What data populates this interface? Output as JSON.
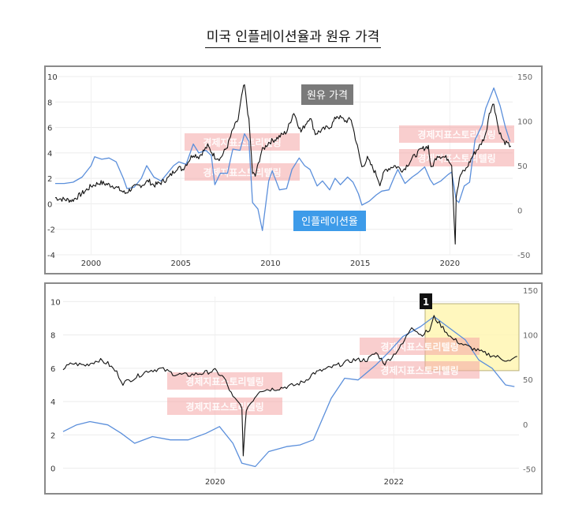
{
  "page": {
    "title": "미국 인플레이션율과 원유 가격"
  },
  "colors": {
    "inflation_line": "#5b8fdb",
    "oil_line": "#111111",
    "oil_label_bg": "#7a7a7a",
    "inflation_label_bg": "#3d9be9",
    "highlight_fill": "#fff6b3",
    "watermark": "#f4a6a6",
    "badge_bg": "#111111"
  },
  "chart_data": [
    {
      "type": "line",
      "title": "",
      "x_ticks": [
        "2000",
        "2005",
        "2010",
        "2015",
        "2020"
      ],
      "y_left_ticks": [
        "10",
        "8",
        "6",
        "4",
        "2",
        "0",
        "-2",
        "-4"
      ],
      "y_right_ticks": [
        "150",
        "100",
        "50",
        "0",
        "-50"
      ],
      "ylim_left": [
        -4,
        10
      ],
      "ylim_right": [
        -50,
        150
      ],
      "xlim": [
        1998.0,
        2023.5
      ],
      "grid": true,
      "annotations": {
        "oil": "원유 가격",
        "inflation": "인플레이션율"
      },
      "watermark": "경제지표스토리텔링",
      "series": [
        {
          "name": "인플레이션율",
          "axis": "left",
          "points": [
            [
              1998.0,
              1.6
            ],
            [
              1998.5,
              1.6
            ],
            [
              1999.0,
              1.7
            ],
            [
              1999.5,
              2.1
            ],
            [
              2000.0,
              3.0
            ],
            [
              2000.2,
              3.7
            ],
            [
              2000.6,
              3.5
            ],
            [
              2001.0,
              3.6
            ],
            [
              2001.4,
              3.3
            ],
            [
              2001.8,
              2.0
            ],
            [
              2002.0,
              1.2
            ],
            [
              2002.4,
              1.3
            ],
            [
              2002.8,
              2.0
            ],
            [
              2003.1,
              3.0
            ],
            [
              2003.5,
              2.1
            ],
            [
              2003.9,
              1.8
            ],
            [
              2004.2,
              2.3
            ],
            [
              2004.6,
              3.0
            ],
            [
              2004.9,
              3.3
            ],
            [
              2005.3,
              3.1
            ],
            [
              2005.7,
              4.7
            ],
            [
              2006.0,
              4.0
            ],
            [
              2006.4,
              4.2
            ],
            [
              2006.7,
              3.8
            ],
            [
              2006.9,
              1.5
            ],
            [
              2007.2,
              2.4
            ],
            [
              2007.6,
              2.4
            ],
            [
              2007.9,
              4.3
            ],
            [
              2008.3,
              4.2
            ],
            [
              2008.55,
              5.5
            ],
            [
              2008.8,
              4.9
            ],
            [
              2009.0,
              0.1
            ],
            [
              2009.3,
              -0.4
            ],
            [
              2009.55,
              -2.1
            ],
            [
              2009.9,
              1.8
            ],
            [
              2010.1,
              2.6
            ],
            [
              2010.5,
              1.1
            ],
            [
              2010.9,
              1.2
            ],
            [
              2011.2,
              2.7
            ],
            [
              2011.6,
              3.6
            ],
            [
              2011.9,
              3.0
            ],
            [
              2012.2,
              2.7
            ],
            [
              2012.6,
              1.4
            ],
            [
              2012.9,
              1.8
            ],
            [
              2013.3,
              1.1
            ],
            [
              2013.6,
              2.0
            ],
            [
              2013.9,
              1.5
            ],
            [
              2014.3,
              2.1
            ],
            [
              2014.6,
              1.7
            ],
            [
              2014.9,
              0.8
            ],
            [
              2015.1,
              -0.1
            ],
            [
              2015.5,
              0.2
            ],
            [
              2015.9,
              0.7
            ],
            [
              2016.2,
              1.0
            ],
            [
              2016.6,
              1.1
            ],
            [
              2016.9,
              2.1
            ],
            [
              2017.1,
              2.7
            ],
            [
              2017.5,
              1.6
            ],
            [
              2017.9,
              2.1
            ],
            [
              2018.2,
              2.4
            ],
            [
              2018.6,
              2.9
            ],
            [
              2018.9,
              1.9
            ],
            [
              2019.1,
              1.5
            ],
            [
              2019.5,
              1.8
            ],
            [
              2019.9,
              2.3
            ],
            [
              2020.1,
              2.5
            ],
            [
              2020.35,
              0.3
            ],
            [
              2020.5,
              0.1
            ],
            [
              2020.8,
              1.4
            ],
            [
              2021.1,
              1.7
            ],
            [
              2021.4,
              5.0
            ],
            [
              2021.8,
              6.2
            ],
            [
              2022.0,
              7.5
            ],
            [
              2022.45,
              9.1
            ],
            [
              2022.8,
              7.7
            ],
            [
              2023.1,
              6.0
            ],
            [
              2023.35,
              4.9
            ]
          ]
        },
        {
          "name": "원유 가격",
          "axis": "right",
          "points": [
            [
              1998.0,
              14
            ],
            [
              1998.5,
              12
            ],
            [
              1998.95,
              11
            ],
            [
              1999.3,
              16
            ],
            [
              1999.7,
              22
            ],
            [
              2000.0,
              27
            ],
            [
              2000.5,
              31
            ],
            [
              2000.9,
              29
            ],
            [
              2001.3,
              27
            ],
            [
              2001.9,
              19
            ],
            [
              2002.3,
              25
            ],
            [
              2002.9,
              29
            ],
            [
              2003.2,
              33
            ],
            [
              2003.5,
              28
            ],
            [
              2003.9,
              31
            ],
            [
              2004.3,
              36
            ],
            [
              2004.8,
              48
            ],
            [
              2005.1,
              46
            ],
            [
              2005.7,
              63
            ],
            [
              2006.0,
              60
            ],
            [
              2006.5,
              72
            ],
            [
              2006.9,
              60
            ],
            [
              2007.2,
              58
            ],
            [
              2007.6,
              72
            ],
            [
              2007.9,
              90
            ],
            [
              2008.2,
              102
            ],
            [
              2008.45,
              134
            ],
            [
              2008.55,
              140
            ],
            [
              2008.8,
              100
            ],
            [
              2009.0,
              42
            ],
            [
              2009.15,
              38
            ],
            [
              2009.5,
              66
            ],
            [
              2009.9,
              76
            ],
            [
              2010.3,
              80
            ],
            [
              2010.9,
              88
            ],
            [
              2011.3,
              110
            ],
            [
              2011.7,
              88
            ],
            [
              2012.2,
              105
            ],
            [
              2012.5,
              86
            ],
            [
              2012.9,
              90
            ],
            [
              2013.4,
              95
            ],
            [
              2013.7,
              106
            ],
            [
              2014.2,
              100
            ],
            [
              2014.5,
              102
            ],
            [
              2014.9,
              66
            ],
            [
              2015.1,
              48
            ],
            [
              2015.4,
              58
            ],
            [
              2015.9,
              40
            ],
            [
              2016.1,
              30
            ],
            [
              2016.4,
              45
            ],
            [
              2016.9,
              50
            ],
            [
              2017.4,
              45
            ],
            [
              2017.9,
              58
            ],
            [
              2018.4,
              68
            ],
            [
              2018.8,
              72
            ],
            [
              2018.95,
              46
            ],
            [
              2019.3,
              62
            ],
            [
              2019.9,
              58
            ],
            [
              2020.1,
              52
            ],
            [
              2020.3,
              -37
            ],
            [
              2020.35,
              17
            ],
            [
              2020.6,
              40
            ],
            [
              2020.9,
              46
            ],
            [
              2021.3,
              62
            ],
            [
              2021.7,
              73
            ],
            [
              2022.0,
              85
            ],
            [
              2022.2,
              110
            ],
            [
              2022.45,
              120
            ],
            [
              2022.7,
              92
            ],
            [
              2022.95,
              78
            ],
            [
              2023.2,
              74
            ],
            [
              2023.4,
              72
            ]
          ]
        }
      ]
    },
    {
      "type": "line",
      "title": "",
      "x_ticks": [
        "2020",
        "2022"
      ],
      "y_left_ticks": [
        "10",
        "8",
        "6",
        "4",
        "2",
        "0"
      ],
      "y_right_ticks": [
        "150",
        "100",
        "50",
        "0",
        "-50"
      ],
      "ylim_left": [
        -0.3,
        10.3
      ],
      "ylim_right": [
        -55,
        143
      ],
      "xlim": [
        2018.3,
        2023.4
      ],
      "grid": true,
      "annotations": {
        "badge": "1"
      },
      "highlight": {
        "x_range": [
          2022.35,
          2023.4
        ],
        "y_right_range": [
          60,
          135
        ]
      },
      "watermark": "경제지표스토리텔링",
      "series": [
        {
          "name": "인플레이션율",
          "axis": "left",
          "points": [
            [
              2018.3,
              2.2
            ],
            [
              2018.45,
              2.6
            ],
            [
              2018.6,
              2.8
            ],
            [
              2018.8,
              2.6
            ],
            [
              2018.95,
              2.1
            ],
            [
              2019.1,
              1.5
            ],
            [
              2019.3,
              1.9
            ],
            [
              2019.5,
              1.7
            ],
            [
              2019.7,
              1.7
            ],
            [
              2019.9,
              2.1
            ],
            [
              2020.05,
              2.5
            ],
            [
              2020.2,
              1.5
            ],
            [
              2020.3,
              0.3
            ],
            [
              2020.45,
              0.1
            ],
            [
              2020.6,
              1.0
            ],
            [
              2020.8,
              1.3
            ],
            [
              2020.95,
              1.4
            ],
            [
              2021.1,
              1.7
            ],
            [
              2021.3,
              4.2
            ],
            [
              2021.45,
              5.4
            ],
            [
              2021.6,
              5.3
            ],
            [
              2021.8,
              6.2
            ],
            [
              2021.95,
              7.0
            ],
            [
              2022.1,
              7.9
            ],
            [
              2022.3,
              8.5
            ],
            [
              2022.45,
              9.1
            ],
            [
              2022.6,
              8.5
            ],
            [
              2022.8,
              7.7
            ],
            [
              2022.95,
              6.5
            ],
            [
              2023.1,
              6.0
            ],
            [
              2023.25,
              5.0
            ],
            [
              2023.35,
              4.9
            ]
          ]
        },
        {
          "name": "원유 가격",
          "axis": "right",
          "points": [
            [
              2018.3,
              62
            ],
            [
              2018.4,
              68
            ],
            [
              2018.55,
              66
            ],
            [
              2018.7,
              72
            ],
            [
              2018.8,
              68
            ],
            [
              2018.9,
              58
            ],
            [
              2018.97,
              46
            ],
            [
              2019.1,
              52
            ],
            [
              2019.25,
              60
            ],
            [
              2019.4,
              62
            ],
            [
              2019.55,
              56
            ],
            [
              2019.7,
              55
            ],
            [
              2019.85,
              57
            ],
            [
              2020.0,
              60
            ],
            [
              2020.1,
              52
            ],
            [
              2020.2,
              30
            ],
            [
              2020.3,
              20
            ],
            [
              2020.315,
              -37
            ],
            [
              2020.35,
              17
            ],
            [
              2020.5,
              38
            ],
            [
              2020.7,
              40
            ],
            [
              2020.9,
              44
            ],
            [
              2021.0,
              48
            ],
            [
              2021.1,
              57
            ],
            [
              2021.25,
              62
            ],
            [
              2021.4,
              67
            ],
            [
              2021.55,
              72
            ],
            [
              2021.7,
              72
            ],
            [
              2021.8,
              80
            ],
            [
              2021.9,
              68
            ],
            [
              2022.0,
              78
            ],
            [
              2022.1,
              90
            ],
            [
              2022.2,
              110
            ],
            [
              2022.3,
              100
            ],
            [
              2022.4,
              105
            ],
            [
              2022.45,
              120
            ],
            [
              2022.55,
              108
            ],
            [
              2022.65,
              96
            ],
            [
              2022.8,
              88
            ],
            [
              2022.9,
              84
            ],
            [
              2023.0,
              80
            ],
            [
              2023.1,
              77
            ],
            [
              2023.2,
              74
            ],
            [
              2023.3,
              70
            ],
            [
              2023.38,
              76
            ]
          ]
        }
      ]
    }
  ]
}
